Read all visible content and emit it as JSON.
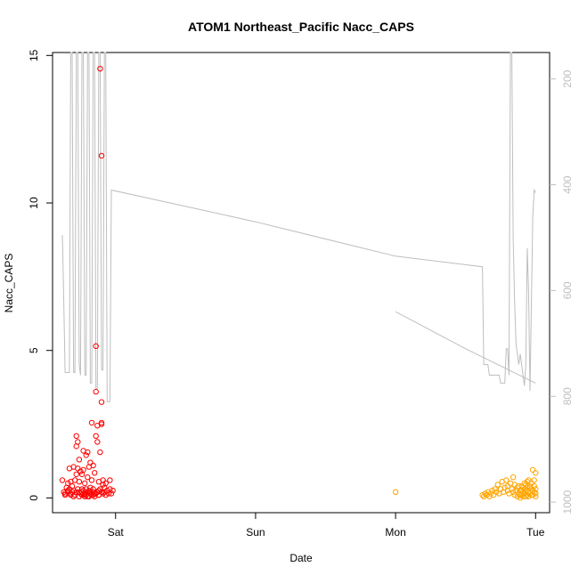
{
  "chart_data": {
    "type": "scatter",
    "title": "ATOM1 Northeast_Pacific Nacc_CAPS",
    "xlabel": "Date",
    "ylabel": "Nacc_CAPS",
    "x_ticks": [
      {
        "label": "Sat",
        "value": 1.0
      },
      {
        "label": "Sun",
        "value": 2.0
      },
      {
        "label": "Mon",
        "value": 3.0
      },
      {
        "label": "Tue",
        "value": 4.0
      }
    ],
    "xlim": [
      0.55,
      4.1
    ],
    "ylim": [
      -0.5,
      15.1
    ],
    "y_ticks": [
      0,
      5,
      10,
      15
    ],
    "y2_ticks": [
      200,
      400,
      600,
      800,
      1000
    ],
    "y2lim": [
      1020,
      150
    ],
    "grid": false,
    "legend": "none",
    "colors": {
      "red_points": "#ff0000",
      "orange_points": "#ffa500",
      "pressure_line": "#bebebe"
    },
    "series": [
      {
        "color": "red",
        "points": [
          [
            0.62,
            0.6
          ],
          [
            0.63,
            0.2
          ],
          [
            0.64,
            0.15
          ],
          [
            0.65,
            0.35
          ],
          [
            0.66,
            0.25
          ],
          [
            0.66,
            0.5
          ],
          [
            0.67,
            1.0
          ],
          [
            0.67,
            0.3
          ],
          [
            0.68,
            0.15
          ],
          [
            0.68,
            0.55
          ],
          [
            0.69,
            0.2
          ],
          [
            0.69,
            0.4
          ],
          [
            0.7,
            1.05
          ],
          [
            0.7,
            0.25
          ],
          [
            0.71,
            0.1
          ],
          [
            0.71,
            0.6
          ],
          [
            0.72,
            0.8
          ],
          [
            0.72,
            1.75
          ],
          [
            0.72,
            2.1
          ],
          [
            0.73,
            1.9
          ],
          [
            0.73,
            0.3
          ],
          [
            0.73,
            1.0
          ],
          [
            0.74,
            0.2
          ],
          [
            0.74,
            0.55
          ],
          [
            0.74,
            1.3
          ],
          [
            0.75,
            0.15
          ],
          [
            0.75,
            0.9
          ],
          [
            0.76,
            0.3
          ],
          [
            0.76,
            0.1
          ],
          [
            0.76,
            0.8
          ],
          [
            0.77,
            0.95
          ],
          [
            0.77,
            1.6
          ],
          [
            0.77,
            0.25
          ],
          [
            0.78,
            0.05
          ],
          [
            0.78,
            0.5
          ],
          [
            0.78,
            0.15
          ],
          [
            0.79,
            1.45
          ],
          [
            0.79,
            0.3
          ],
          [
            0.79,
            0.1
          ],
          [
            0.8,
            1.55
          ],
          [
            0.8,
            0.2
          ],
          [
            0.8,
            0.7
          ],
          [
            0.81,
            1.05
          ],
          [
            0.81,
            0.25
          ],
          [
            0.81,
            0.05
          ],
          [
            0.82,
            1.2
          ],
          [
            0.82,
            0.35
          ],
          [
            0.82,
            0.15
          ],
          [
            0.83,
            2.55
          ],
          [
            0.83,
            0.6
          ],
          [
            0.83,
            0.1
          ],
          [
            0.84,
            1.1
          ],
          [
            0.84,
            0.2
          ],
          [
            0.84,
            0.3
          ],
          [
            0.85,
            0.15
          ],
          [
            0.85,
            0.85
          ],
          [
            0.85,
            0.05
          ],
          [
            0.86,
            2.1
          ],
          [
            0.86,
            5.15
          ],
          [
            0.86,
            3.6
          ],
          [
            0.87,
            1.9
          ],
          [
            0.87,
            0.2
          ],
          [
            0.87,
            2.45
          ],
          [
            0.88,
            0.1
          ],
          [
            0.88,
            0.55
          ],
          [
            0.88,
            0.25
          ],
          [
            0.89,
            1.55
          ],
          [
            0.89,
            0.3
          ],
          [
            0.89,
            14.55
          ],
          [
            0.9,
            2.5
          ],
          [
            0.9,
            3.25
          ],
          [
            0.9,
            11.6
          ],
          [
            0.9,
            2.55
          ],
          [
            0.91,
            0.45
          ],
          [
            0.91,
            0.15
          ],
          [
            0.91,
            0.6
          ],
          [
            0.92,
            0.2
          ],
          [
            0.92,
            0.35
          ],
          [
            0.93,
            0.1
          ],
          [
            0.93,
            0.5
          ],
          [
            0.94,
            0.25
          ],
          [
            0.95,
            0.15
          ],
          [
            0.96,
            0.6
          ],
          [
            0.96,
            0.3
          ],
          [
            0.97,
            0.15
          ],
          [
            0.98,
            0.25
          ],
          [
            0.64,
            0.1
          ],
          [
            0.66,
            0.2
          ],
          [
            0.68,
            0.1
          ],
          [
            0.7,
            0.05
          ],
          [
            0.72,
            0.2
          ],
          [
            0.74,
            0.05
          ],
          [
            0.76,
            0.2
          ],
          [
            0.78,
            0.1
          ],
          [
            0.8,
            0.05
          ],
          [
            0.82,
            0.2
          ],
          [
            0.84,
            0.1
          ],
          [
            0.86,
            0.15
          ],
          [
            0.88,
            0.1
          ],
          [
            0.9,
            0.2
          ]
        ]
      },
      {
        "color": "orange",
        "points": [
          [
            3.0,
            0.2
          ],
          [
            3.62,
            0.1
          ],
          [
            3.63,
            0.05
          ],
          [
            3.64,
            0.15
          ],
          [
            3.65,
            0.1
          ],
          [
            3.66,
            0.2
          ],
          [
            3.67,
            0.05
          ],
          [
            3.68,
            0.15
          ],
          [
            3.69,
            0.25
          ],
          [
            3.7,
            0.1
          ],
          [
            3.71,
            0.3
          ],
          [
            3.72,
            0.2
          ],
          [
            3.73,
            0.45
          ],
          [
            3.74,
            0.15
          ],
          [
            3.75,
            0.3
          ],
          [
            3.76,
            0.55
          ],
          [
            3.77,
            0.2
          ],
          [
            3.78,
            0.35
          ],
          [
            3.79,
            0.6
          ],
          [
            3.8,
            0.25
          ],
          [
            3.8,
            0.4
          ],
          [
            3.81,
            0.15
          ],
          [
            3.82,
            0.5
          ],
          [
            3.83,
            0.3
          ],
          [
            3.84,
            0.7
          ],
          [
            3.84,
            0.2
          ],
          [
            3.85,
            0.1
          ],
          [
            3.85,
            0.45
          ],
          [
            3.86,
            0.25
          ],
          [
            3.87,
            0.05
          ],
          [
            3.87,
            0.35
          ],
          [
            3.88,
            0.15
          ],
          [
            3.89,
            0.0
          ],
          [
            3.89,
            0.25
          ],
          [
            3.9,
            0.1
          ],
          [
            3.9,
            0.4
          ],
          [
            3.91,
            0.2
          ],
          [
            3.91,
            0.05
          ],
          [
            3.92,
            0.3
          ],
          [
            3.92,
            0.15
          ],
          [
            3.93,
            0.45
          ],
          [
            3.93,
            0.25
          ],
          [
            3.94,
            0.55
          ],
          [
            3.94,
            0.35
          ],
          [
            3.95,
            0.2
          ],
          [
            3.95,
            0.6
          ],
          [
            3.96,
            0.4
          ],
          [
            3.96,
            0.15
          ],
          [
            3.97,
            0.3
          ],
          [
            3.97,
            0.5
          ],
          [
            3.98,
            0.95
          ],
          [
            3.98,
            0.25
          ],
          [
            3.98,
            0.1
          ],
          [
            3.99,
            0.4
          ],
          [
            3.99,
            0.2
          ],
          [
            3.99,
            0.6
          ],
          [
            4.0,
            0.85
          ],
          [
            4.0,
            0.3
          ],
          [
            4.0,
            0.15
          ],
          [
            4.0,
            0.05
          ],
          [
            3.97,
            0.1
          ],
          [
            3.96,
            0.35
          ],
          [
            3.95,
            0.05
          ],
          [
            3.94,
            0.1
          ],
          [
            3.93,
            0.05
          ],
          [
            3.92,
            0.5
          ],
          [
            3.91,
            0.35
          ],
          [
            3.9,
            0.25
          ],
          [
            3.89,
            0.1
          ],
          [
            3.88,
            0.4
          ]
        ]
      }
    ],
    "pressure_line": {
      "axis": "right",
      "segments": [
        [
          [
            0.62,
            495
          ],
          [
            0.63,
            620
          ],
          [
            0.64,
            755
          ],
          [
            0.65,
            755
          ],
          [
            0.66,
            755
          ],
          [
            0.67,
            755
          ],
          [
            0.68,
            150
          ],
          [
            0.69,
            150
          ],
          [
            0.7,
            755
          ],
          [
            0.71,
            755
          ],
          [
            0.72,
            150
          ],
          [
            0.73,
            150
          ],
          [
            0.74,
            740
          ],
          [
            0.75,
            760
          ],
          [
            0.76,
            150
          ],
          [
            0.77,
            150
          ],
          [
            0.78,
            760
          ],
          [
            0.79,
            760
          ],
          [
            0.8,
            150
          ],
          [
            0.81,
            150
          ],
          [
            0.82,
            775
          ],
          [
            0.83,
            775
          ],
          [
            0.84,
            150
          ],
          [
            0.85,
            150
          ],
          [
            0.86,
            785
          ],
          [
            0.87,
            785
          ],
          [
            0.88,
            150
          ],
          [
            0.89,
            150
          ],
          [
            0.9,
            750
          ],
          [
            0.91,
            750
          ],
          [
            0.92,
            150
          ],
          [
            0.93,
            150
          ],
          [
            0.94,
            810
          ],
          [
            0.95,
            810
          ],
          [
            0.96,
            810
          ],
          [
            0.97,
            410
          ],
          [
            2.0,
            470
          ],
          [
            3.0,
            535
          ],
          [
            3.62,
            555
          ],
          [
            3.63,
            740
          ],
          [
            3.66,
            740
          ],
          [
            3.67,
            760
          ],
          [
            3.74,
            760
          ],
          [
            3.75,
            775
          ],
          [
            3.78,
            775
          ],
          [
            3.79,
            710
          ],
          [
            3.8,
            710
          ],
          [
            3.81,
            760
          ],
          [
            3.82,
            150
          ],
          [
            3.83,
            150
          ],
          [
            3.84,
            500
          ],
          [
            3.85,
            620
          ],
          [
            3.86,
            700
          ],
          [
            3.87,
            720
          ],
          [
            3.88,
            740
          ],
          [
            3.89,
            720
          ],
          [
            3.9,
            740
          ],
          [
            3.91,
            760
          ],
          [
            3.92,
            780
          ],
          [
            3.93,
            740
          ],
          [
            3.94,
            520
          ],
          [
            3.95,
            600
          ],
          [
            3.96,
            790
          ],
          [
            3.97,
            620
          ],
          [
            3.98,
            460
          ],
          [
            3.99,
            410
          ],
          [
            4.0,
            415
          ]
        ],
        [
          [
            3.0,
            640
          ],
          [
            3.5,
            710
          ],
          [
            4.0,
            775
          ]
        ]
      ]
    }
  }
}
